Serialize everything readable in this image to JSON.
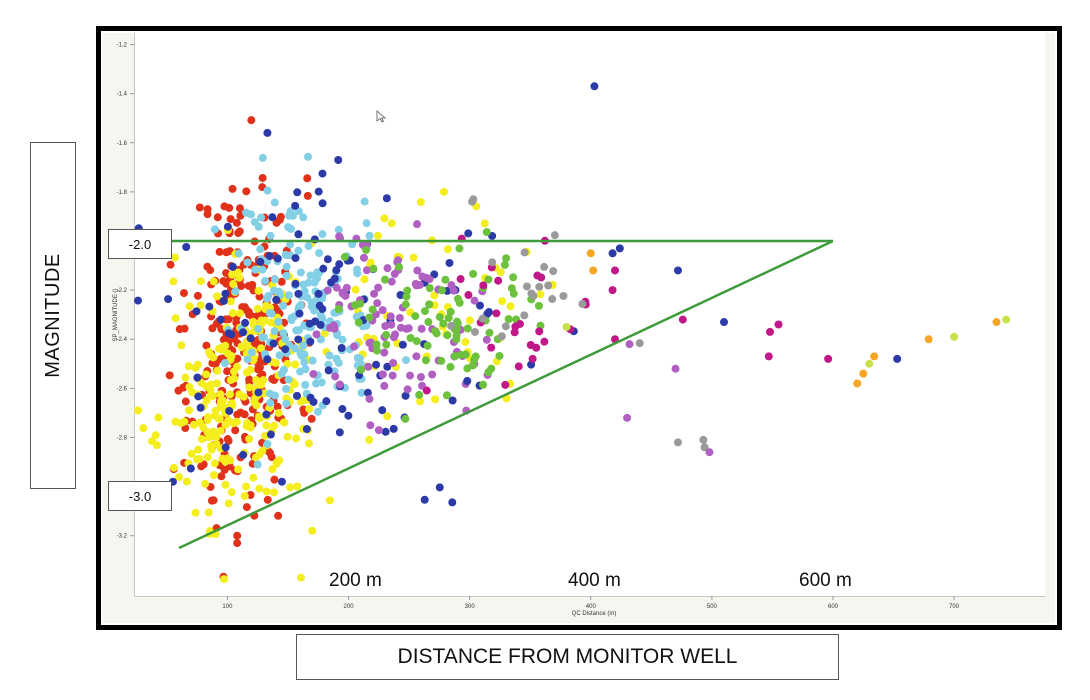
{
  "y_axis_label": "MAGNITUDE",
  "x_axis_label": "DISTANCE FROM MONITOR WELL",
  "annotations": {
    "mag_upper": "-2.0",
    "mag_lower": "-3.0",
    "dist_200": "200 m",
    "dist_400": "400 m",
    "dist_600": "600 m"
  },
  "chart_data": {
    "type": "scatter",
    "xlabel": "QC Distance (m)",
    "ylabel": "SP_MAGNITUDE ()",
    "xlim": [
      20,
      755
    ],
    "ylim": [
      -3.32,
      -1.2
    ],
    "x_ticks": [
      100,
      200,
      300,
      400,
      500,
      600,
      700
    ],
    "x_tick_labels": [
      "100",
      "200",
      "300",
      "400",
      "500",
      "600",
      "700"
    ],
    "y_ticks": [
      -1.2,
      -1.4,
      -1.6,
      -1.8,
      -2.2,
      -2.4,
      -2.6,
      -2.8,
      -3.2
    ],
    "y_tick_labels": [
      "-1.2",
      "-1.4",
      "-1.6",
      "-1.8",
      "-2.2",
      "-2.4",
      "-2.6",
      "-2.8",
      "-3.2"
    ],
    "grid": false,
    "colors": {
      "red": "#e0321a",
      "yellow": "#f5ee1e",
      "light_blue": "#82cfe6",
      "dark_blue": "#2b3aa6",
      "purple": "#b060c0",
      "green": "#6cc23c",
      "magenta": "#c01888",
      "gray": "#9a9a9a",
      "orange": "#f5a624",
      "lime": "#c8e04a",
      "line": "#3f9a3a"
    },
    "lines": [
      {
        "x": [
          60,
          600
        ],
        "y": [
          -2.0,
          -2.0
        ],
        "color": "line"
      },
      {
        "x": [
          60,
          600
        ],
        "y": [
          -3.25,
          -2.0
        ],
        "color": "line"
      }
    ],
    "series": [
      {
        "color": "red",
        "center": [
          115,
          -2.38
        ],
        "spread": [
          22,
          0.32
        ],
        "count": 260,
        "seed": 11
      },
      {
        "color": "red",
        "center": [
          85,
          -2.75
        ],
        "spread": [
          18,
          0.2
        ],
        "count": 20,
        "seed": 12
      },
      {
        "color": "yellow",
        "center": [
          118,
          -2.6
        ],
        "spread": [
          30,
          0.25
        ],
        "count": 200,
        "seed": 21
      },
      {
        "color": "yellow",
        "center": [
          78,
          -2.78
        ],
        "spread": [
          12,
          0.22
        ],
        "count": 45,
        "seed": 22
      },
      {
        "color": "yellow",
        "center": [
          265,
          -2.3
        ],
        "spread": [
          45,
          0.2
        ],
        "count": 60,
        "seed": 23
      },
      {
        "color": "light_blue",
        "center": [
          165,
          -2.33
        ],
        "spread": [
          30,
          0.2
        ],
        "count": 160,
        "seed": 31
      },
      {
        "color": "light_blue",
        "center": [
          145,
          -1.95
        ],
        "spread": [
          20,
          0.15
        ],
        "count": 20,
        "seed": 32
      },
      {
        "color": "dark_blue",
        "center": [
          190,
          -2.35
        ],
        "spread": [
          75,
          0.28
        ],
        "count": 110,
        "seed": 41
      },
      {
        "color": "purple",
        "center": [
          235,
          -2.32
        ],
        "spread": [
          40,
          0.18
        ],
        "count": 90,
        "seed": 51
      },
      {
        "color": "green",
        "center": [
          275,
          -2.3
        ],
        "spread": [
          45,
          0.18
        ],
        "count": 80,
        "seed": 61
      },
      {
        "color": "magenta",
        "center": [
          350,
          -2.32
        ],
        "spread": [
          40,
          0.14
        ],
        "count": 25,
        "seed": 71
      },
      {
        "color": "gray",
        "center": [
          345,
          -2.22
        ],
        "spread": [
          30,
          0.12
        ],
        "count": 20,
        "seed": 81
      }
    ],
    "outliers": [
      {
        "x": 403,
        "y": -1.37,
        "color": "dark_blue"
      },
      {
        "x": 133,
        "y": -1.56,
        "color": "dark_blue"
      },
      {
        "x": 303,
        "y": -1.83,
        "color": "gray"
      },
      {
        "x": 302,
        "y": -1.84,
        "color": "gray"
      },
      {
        "x": 400,
        "y": -2.05,
        "color": "orange"
      },
      {
        "x": 402,
        "y": -2.12,
        "color": "orange"
      },
      {
        "x": 472,
        "y": -2.12,
        "color": "dark_blue"
      },
      {
        "x": 476,
        "y": -2.32,
        "color": "magenta"
      },
      {
        "x": 510,
        "y": -2.33,
        "color": "dark_blue"
      },
      {
        "x": 548,
        "y": -2.37,
        "color": "magenta"
      },
      {
        "x": 555,
        "y": -2.34,
        "color": "magenta"
      },
      {
        "x": 547,
        "y": -2.47,
        "color": "magenta"
      },
      {
        "x": 596,
        "y": -2.48,
        "color": "magenta"
      },
      {
        "x": 470,
        "y": -2.52,
        "color": "purple"
      },
      {
        "x": 432,
        "y": -2.42,
        "color": "purple"
      },
      {
        "x": 430,
        "y": -2.72,
        "color": "purple"
      },
      {
        "x": 472,
        "y": -2.82,
        "color": "gray"
      },
      {
        "x": 493,
        "y": -2.81,
        "color": "gray"
      },
      {
        "x": 494,
        "y": -2.84,
        "color": "gray"
      },
      {
        "x": 498,
        "y": -2.86,
        "color": "purple"
      },
      {
        "x": 620,
        "y": -2.58,
        "color": "orange"
      },
      {
        "x": 625,
        "y": -2.54,
        "color": "orange"
      },
      {
        "x": 630,
        "y": -2.5,
        "color": "lime"
      },
      {
        "x": 634,
        "y": -2.47,
        "color": "orange"
      },
      {
        "x": 653,
        "y": -2.48,
        "color": "dark_blue"
      },
      {
        "x": 679,
        "y": -2.4,
        "color": "orange"
      },
      {
        "x": 700,
        "y": -2.39,
        "color": "lime"
      },
      {
        "x": 735,
        "y": -2.33,
        "color": "orange"
      },
      {
        "x": 743,
        "y": -2.32,
        "color": "lime"
      },
      {
        "x": 420,
        "y": -2.4,
        "color": "magenta"
      },
      {
        "x": 380,
        "y": -2.35,
        "color": "lime"
      },
      {
        "x": 352,
        "y": -2.48,
        "color": "magenta"
      },
      {
        "x": 418,
        "y": -2.2,
        "color": "magenta"
      },
      {
        "x": 420,
        "y": -2.12,
        "color": "magenta"
      },
      {
        "x": 418,
        "y": -2.05,
        "color": "dark_blue"
      },
      {
        "x": 424,
        "y": -2.03,
        "color": "dark_blue"
      },
      {
        "x": 108,
        "y": -3.2,
        "color": "red"
      },
      {
        "x": 108,
        "y": -3.23,
        "color": "red"
      },
      {
        "x": 170,
        "y": -3.18,
        "color": "yellow"
      },
      {
        "x": 55,
        "y": -2.98,
        "color": "dark_blue"
      },
      {
        "x": 145,
        "y": -2.98,
        "color": "dark_blue"
      },
      {
        "x": 298,
        "y": -2.57,
        "color": "dark_blue"
      },
      {
        "x": 305,
        "y": -2.47,
        "color": "green"
      },
      {
        "x": 225,
        "y": -2.77,
        "color": "purple"
      },
      {
        "x": 218,
        "y": -2.75,
        "color": "purple"
      }
    ]
  }
}
